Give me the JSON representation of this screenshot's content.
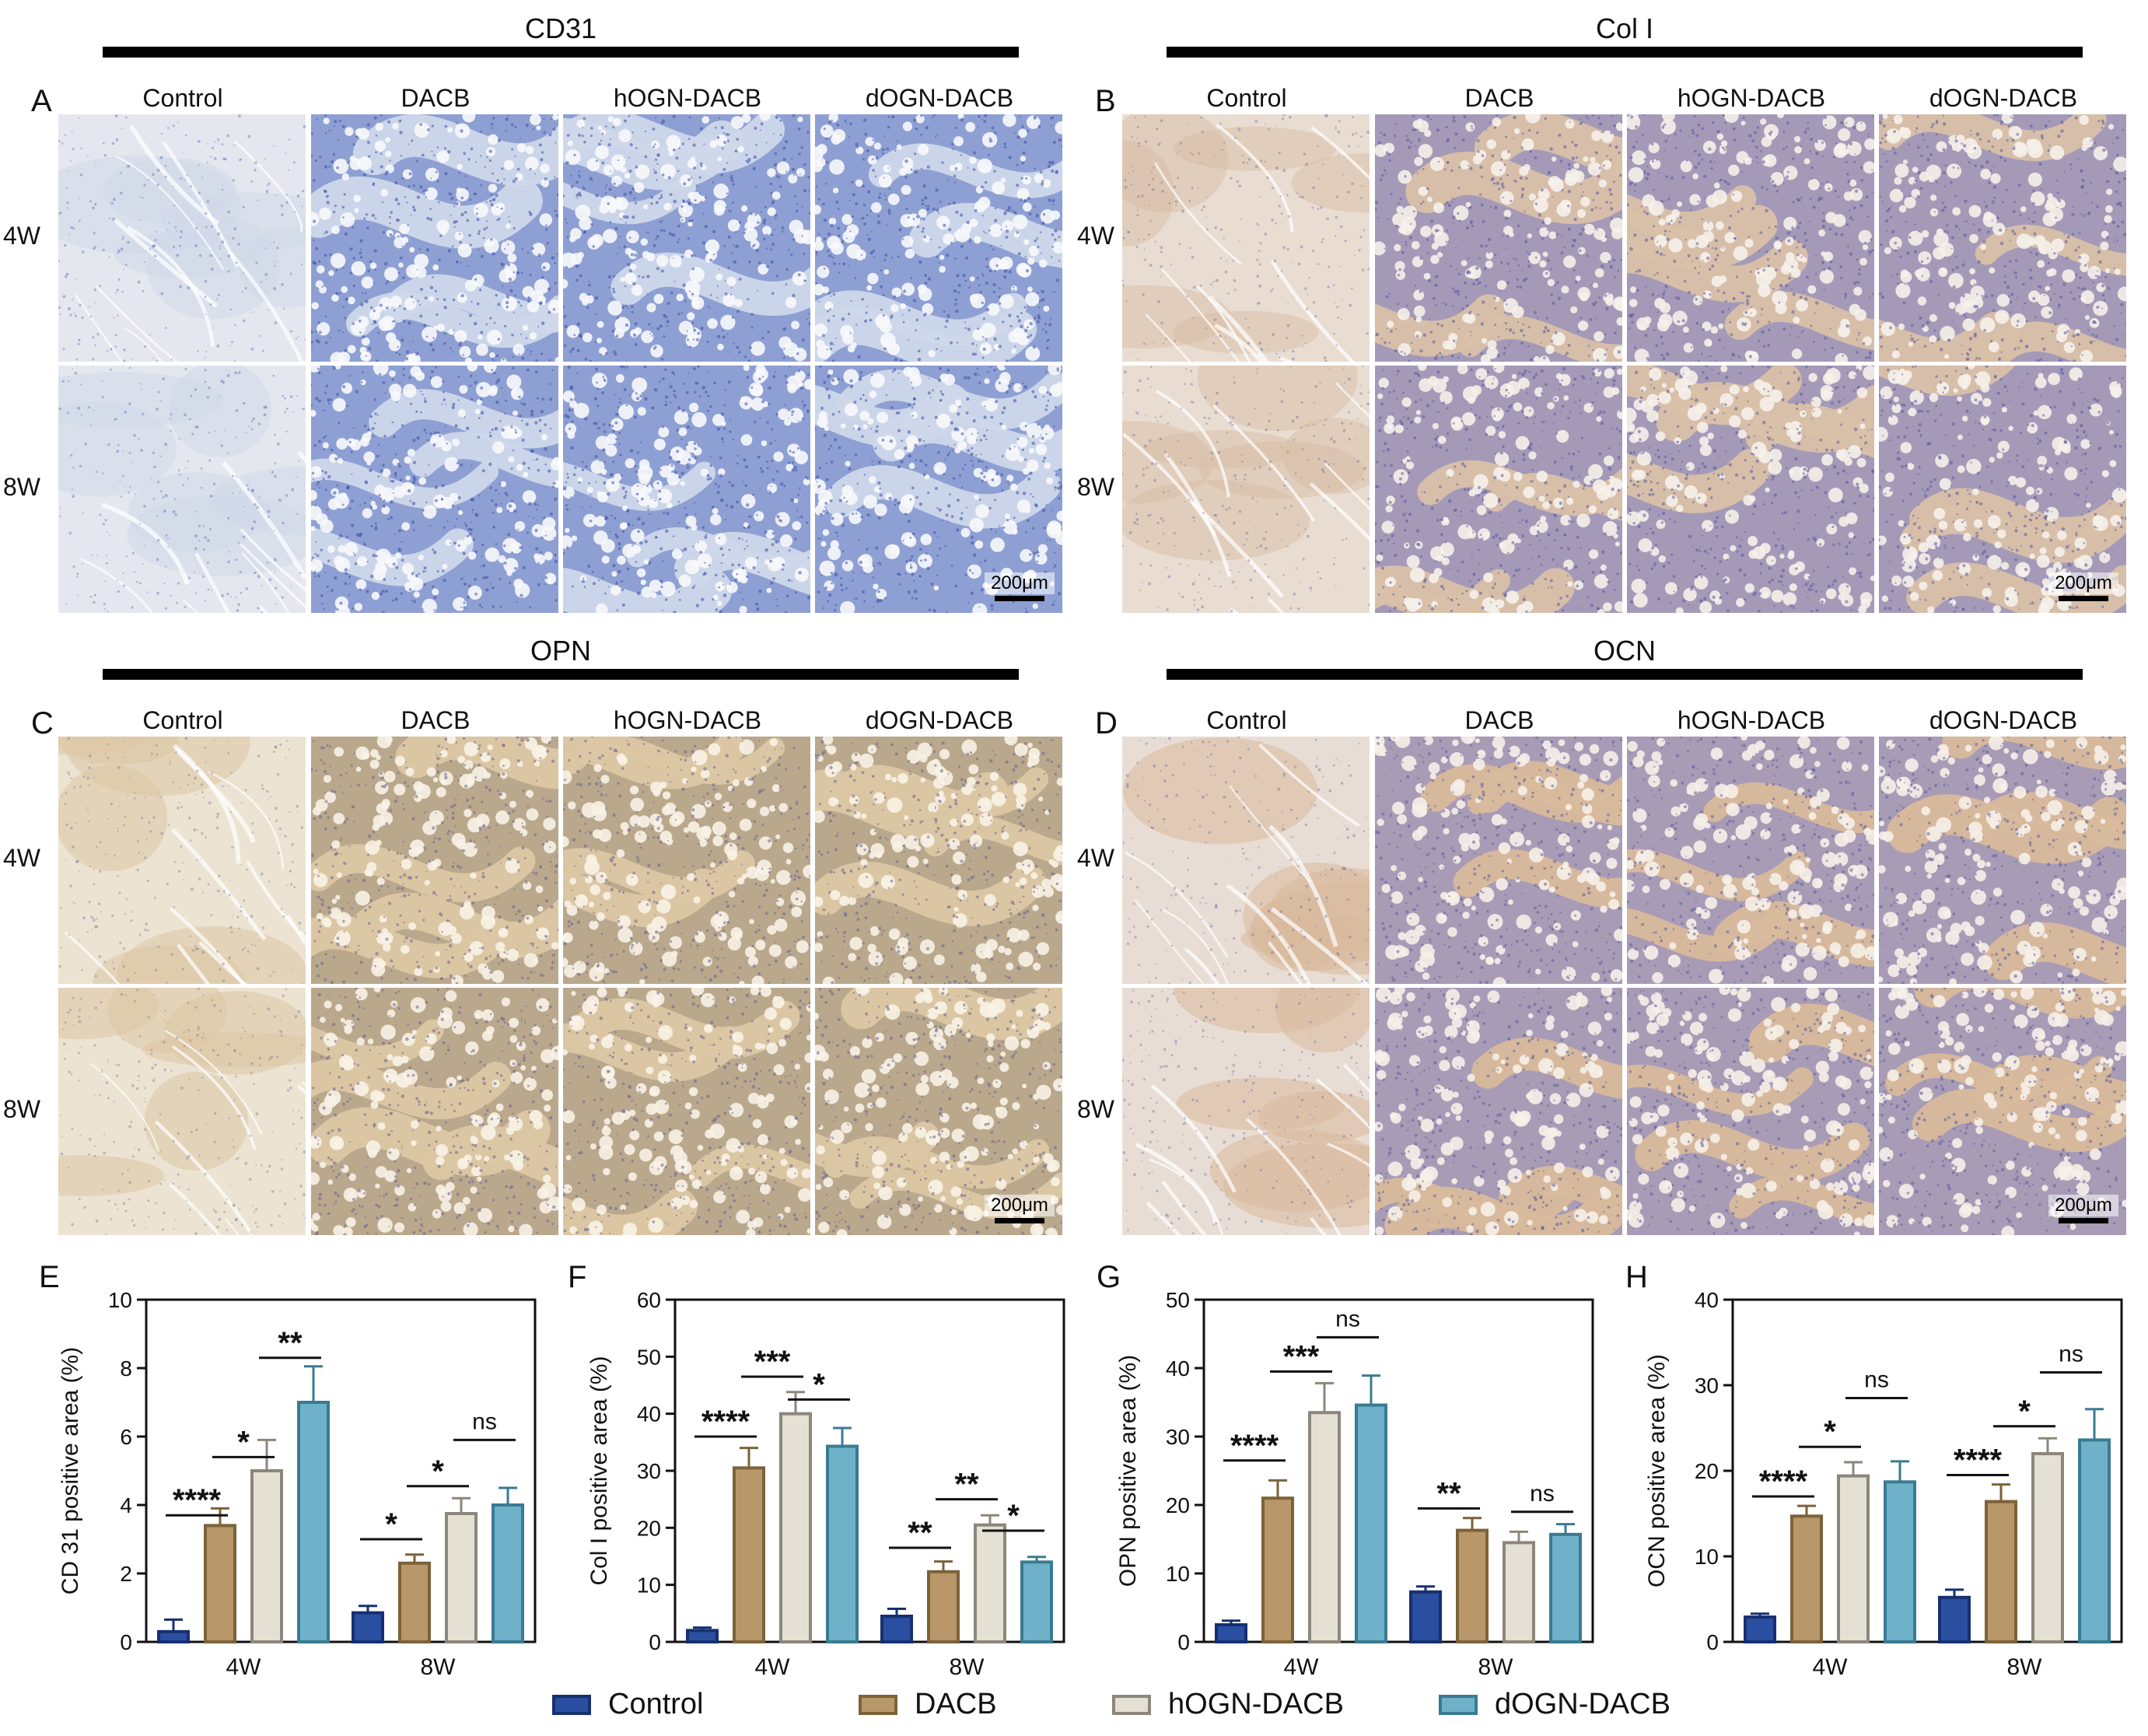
{
  "columns": [
    "Control",
    "DACB",
    "hOGN-DACB",
    "dOGN-DACB"
  ],
  "rows": [
    "4W",
    "8W"
  ],
  "scale_bar": "200μm",
  "colors": {
    "Control": {
      "fill": "#2a4fa0",
      "stroke": "#163070"
    },
    "DACB": {
      "fill": "#b8976a",
      "stroke": "#7d6238"
    },
    "hOGN-DACB": {
      "fill": "#e5e0d4",
      "stroke": "#8d877b"
    },
    "dOGN-DACB": {
      "fill": "#6fb1c8",
      "stroke": "#3a7b92"
    }
  },
  "panels": [
    {
      "letter": "A",
      "title": "CD31",
      "stain": "cd31"
    },
    {
      "letter": "B",
      "title": "Col I",
      "stain": "col1"
    },
    {
      "letter": "C",
      "title": "OPN",
      "stain": "opn"
    },
    {
      "letter": "D",
      "title": "OCN",
      "stain": "ocn"
    }
  ],
  "legend": [
    "Control",
    "DACB",
    "hOGN-DACB",
    "dOGN-DACB"
  ],
  "chart_data": [
    {
      "type": "bar",
      "letter": "E",
      "ylabel": "CD 31 positive area (%)",
      "ylim": [
        0,
        10
      ],
      "yticks": [
        0,
        2,
        4,
        6,
        8,
        10
      ],
      "categories": [
        "4W",
        "8W"
      ],
      "series": [
        {
          "name": "Control",
          "values": [
            0.3,
            0.85
          ],
          "errors": [
            0.35,
            0.2
          ]
        },
        {
          "name": "DACB",
          "values": [
            3.4,
            2.3
          ],
          "errors": [
            0.5,
            0.25
          ]
        },
        {
          "name": "hOGN-DACB",
          "values": [
            5.0,
            3.75
          ],
          "errors": [
            0.9,
            0.45
          ]
        },
        {
          "name": "dOGN-DACB",
          "values": [
            7.0,
            4.0
          ],
          "errors": [
            1.05,
            0.5
          ]
        }
      ],
      "significance": [
        {
          "group": 0,
          "from": 0,
          "to": 1,
          "label": "****",
          "y": 3.7
        },
        {
          "group": 0,
          "from": 1,
          "to": 2,
          "label": "*",
          "y": 5.4
        },
        {
          "group": 0,
          "from": 2,
          "to": 3,
          "label": "**",
          "y": 8.3
        },
        {
          "group": 1,
          "from": 0,
          "to": 1,
          "label": "*",
          "y": 3.0
        },
        {
          "group": 1,
          "from": 1,
          "to": 2,
          "label": "*",
          "y": 4.55
        },
        {
          "group": 1,
          "from": 2,
          "to": 3,
          "label": "ns",
          "y": 5.9
        }
      ]
    },
    {
      "type": "bar",
      "letter": "F",
      "ylabel": "Col I positive area (%)",
      "ylim": [
        0,
        60
      ],
      "yticks": [
        0,
        10,
        20,
        30,
        40,
        50,
        60
      ],
      "categories": [
        "4W",
        "8W"
      ],
      "series": [
        {
          "name": "Control",
          "values": [
            2.0,
            4.5
          ],
          "errors": [
            0.5,
            1.3
          ]
        },
        {
          "name": "DACB",
          "values": [
            30.5,
            12.3
          ],
          "errors": [
            3.5,
            1.8
          ]
        },
        {
          "name": "hOGN-DACB",
          "values": [
            40.0,
            20.5
          ],
          "errors": [
            3.8,
            1.7
          ]
        },
        {
          "name": "dOGN-DACB",
          "values": [
            34.3,
            14.0
          ],
          "errors": [
            3.2,
            0.9
          ]
        }
      ],
      "significance": [
        {
          "group": 0,
          "from": 0,
          "to": 1,
          "label": "****",
          "y": 36.0
        },
        {
          "group": 0,
          "from": 1,
          "to": 2,
          "label": "***",
          "y": 46.5
        },
        {
          "group": 0,
          "from": 2,
          "to": 3,
          "label": "*",
          "y": 42.5
        },
        {
          "group": 1,
          "from": 0,
          "to": 1,
          "label": "**",
          "y": 16.5
        },
        {
          "group": 1,
          "from": 1,
          "to": 2,
          "label": "**",
          "y": 25.0
        },
        {
          "group": 1,
          "from": 2,
          "to": 3,
          "label": "*",
          "y": 19.5
        }
      ]
    },
    {
      "type": "bar",
      "letter": "G",
      "ylabel": "OPN positive area (%)",
      "ylim": [
        0,
        50
      ],
      "yticks": [
        0,
        10,
        20,
        30,
        40,
        50
      ],
      "categories": [
        "4W",
        "8W"
      ],
      "series": [
        {
          "name": "Control",
          "values": [
            2.5,
            7.3
          ],
          "errors": [
            0.6,
            0.8
          ]
        },
        {
          "name": "DACB",
          "values": [
            21.0,
            16.3
          ],
          "errors": [
            2.6,
            1.8
          ]
        },
        {
          "name": "hOGN-DACB",
          "values": [
            33.5,
            14.5
          ],
          "errors": [
            4.3,
            1.6
          ]
        },
        {
          "name": "dOGN-DACB",
          "values": [
            34.6,
            15.7
          ],
          "errors": [
            4.3,
            1.5
          ]
        }
      ],
      "significance": [
        {
          "group": 0,
          "from": 0,
          "to": 1,
          "label": "****",
          "y": 26.5
        },
        {
          "group": 0,
          "from": 1,
          "to": 2,
          "label": "***",
          "y": 39.5
        },
        {
          "group": 0,
          "from": 2,
          "to": 3,
          "label": "ns",
          "y": 44.5
        },
        {
          "group": 1,
          "from": 0,
          "to": 1,
          "label": "**",
          "y": 19.5
        },
        {
          "group": 1,
          "from": 2,
          "to": 3,
          "label": "ns",
          "y": 19.0
        }
      ]
    },
    {
      "type": "bar",
      "letter": "H",
      "ylabel": "OCN positive area (%)",
      "ylim": [
        0,
        40
      ],
      "yticks": [
        0,
        10,
        20,
        30,
        40
      ],
      "categories": [
        "4W",
        "8W"
      ],
      "series": [
        {
          "name": "Control",
          "values": [
            2.9,
            5.2
          ],
          "errors": [
            0.4,
            0.9
          ]
        },
        {
          "name": "DACB",
          "values": [
            14.7,
            16.4
          ],
          "errors": [
            1.2,
            2.0
          ]
        },
        {
          "name": "hOGN-DACB",
          "values": [
            19.4,
            22.0
          ],
          "errors": [
            1.6,
            1.8
          ]
        },
        {
          "name": "dOGN-DACB",
          "values": [
            18.7,
            23.6
          ],
          "errors": [
            2.4,
            3.6
          ]
        }
      ],
      "significance": [
        {
          "group": 0,
          "from": 0,
          "to": 1,
          "label": "****",
          "y": 17.0
        },
        {
          "group": 0,
          "from": 1,
          "to": 2,
          "label": "*",
          "y": 22.8
        },
        {
          "group": 0,
          "from": 2,
          "to": 3,
          "label": "ns",
          "y": 28.5
        },
        {
          "group": 1,
          "from": 0,
          "to": 1,
          "label": "****",
          "y": 19.5
        },
        {
          "group": 1,
          "from": 1,
          "to": 2,
          "label": "*",
          "y": 25.2
        },
        {
          "group": 1,
          "from": 2,
          "to": 3,
          "label": "ns",
          "y": 31.5
        }
      ]
    }
  ]
}
